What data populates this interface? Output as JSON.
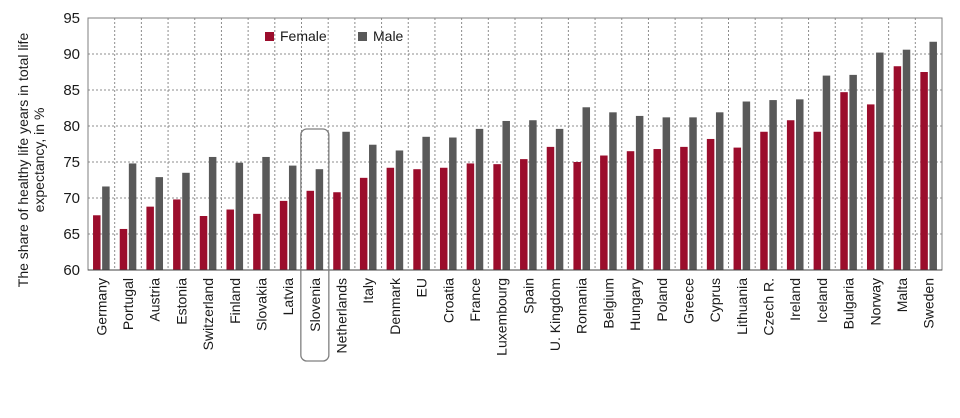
{
  "chart_data": {
    "type": "bar",
    "title": "",
    "xlabel": "",
    "ylabel": "The share of healthy life years in total life expectancy, in %",
    "ylim": [
      60,
      95
    ],
    "yticks": [
      60,
      65,
      70,
      75,
      80,
      85,
      90,
      95
    ],
    "grid": true,
    "legend_position": "top-left",
    "highlighted_category": "Slovenia",
    "categories": [
      "Germany",
      "Portugal",
      "Austria",
      "Estonia",
      "Switzerland",
      "Finland",
      "Slovakia",
      "Latvia",
      "Slovenia",
      "Netherlands",
      "Italy",
      "Denmark",
      "EU",
      "Croatia",
      "France",
      "Luxembourg",
      "Spain",
      "U. Kingdom",
      "Romania",
      "Belgium",
      "Hungary",
      "Poland",
      "Greece",
      "Cyprus",
      "Lithuania",
      "Czech R.",
      "Ireland",
      "Iceland",
      "Bulgaria",
      "Norway",
      "Malta",
      "Sweden"
    ],
    "series": [
      {
        "name": "Female",
        "color": "#9b0d2c",
        "values": [
          67.6,
          65.7,
          68.8,
          69.8,
          67.5,
          68.4,
          67.8,
          69.6,
          71.0,
          70.8,
          72.8,
          74.2,
          74.0,
          74.2,
          74.8,
          74.7,
          75.4,
          77.1,
          75.0,
          75.9,
          76.5,
          76.8,
          77.1,
          78.2,
          77.0,
          79.2,
          80.8,
          79.2,
          84.7,
          83.0,
          88.3,
          87.5
        ]
      },
      {
        "name": "Male",
        "color": "#595959",
        "values": [
          71.6,
          74.8,
          72.9,
          73.5,
          75.7,
          74.9,
          75.7,
          74.5,
          74.0,
          79.2,
          77.4,
          76.6,
          78.5,
          78.4,
          79.6,
          80.7,
          80.8,
          79.6,
          82.6,
          81.9,
          81.4,
          81.2,
          81.2,
          81.9,
          83.4,
          83.6,
          83.7,
          87.0,
          87.1,
          90.2,
          90.6,
          91.7
        ]
      }
    ]
  }
}
